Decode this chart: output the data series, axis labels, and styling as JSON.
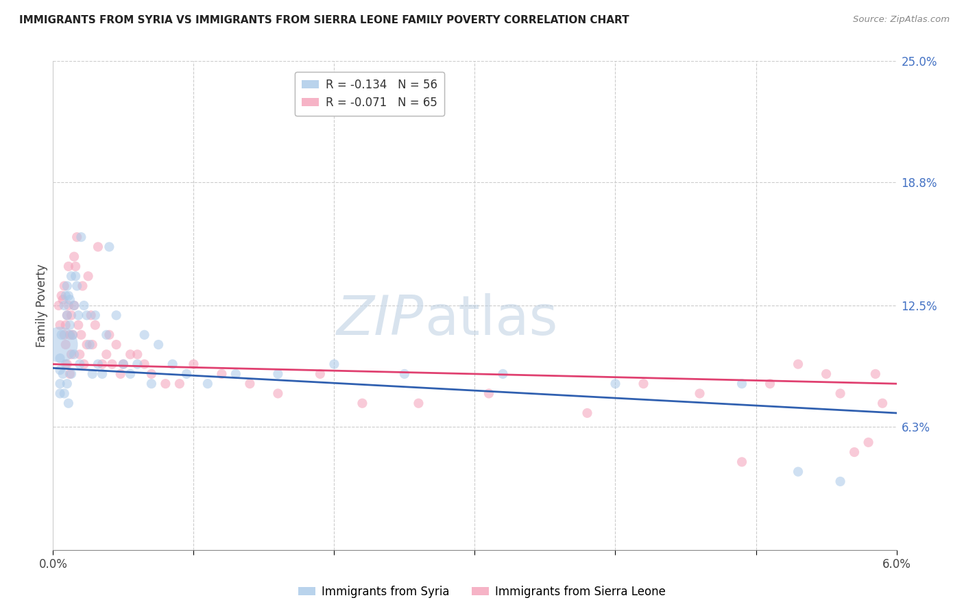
{
  "title": "IMMIGRANTS FROM SYRIA VS IMMIGRANTS FROM SIERRA LEONE FAMILY POVERTY CORRELATION CHART",
  "source": "Source: ZipAtlas.com",
  "ylabel": "Family Poverty",
  "ylabel_right_ticks": [
    6.3,
    12.5,
    18.8,
    25.0
  ],
  "xlim": [
    0.0,
    6.0
  ],
  "ylim": [
    0.0,
    25.0
  ],
  "syria_R": -0.134,
  "syria_N": 56,
  "sierraleone_R": -0.071,
  "sierraleone_N": 65,
  "syria_color": "#a8c8e8",
  "sierraleone_color": "#f4a0b8",
  "syria_line_color": "#3060b0",
  "sierraleone_line_color": "#e04070",
  "background_color": "#ffffff",
  "watermark_zip": "ZIP",
  "watermark_atlas": "atlas",
  "legend_label_syria": "Immigrants from Syria",
  "legend_label_sierraleone": "Immigrants from Sierra Leone",
  "syria_x": [
    0.05,
    0.05,
    0.05,
    0.05,
    0.05,
    0.06,
    0.07,
    0.08,
    0.08,
    0.09,
    0.09,
    0.1,
    0.1,
    0.1,
    0.11,
    0.11,
    0.12,
    0.12,
    0.13,
    0.13,
    0.14,
    0.15,
    0.15,
    0.16,
    0.17,
    0.18,
    0.19,
    0.2,
    0.22,
    0.24,
    0.26,
    0.28,
    0.3,
    0.32,
    0.35,
    0.38,
    0.4,
    0.45,
    0.5,
    0.55,
    0.6,
    0.65,
    0.7,
    0.75,
    0.85,
    0.95,
    1.1,
    1.3,
    1.6,
    2.0,
    2.5,
    3.2,
    4.0,
    4.9,
    5.3,
    5.6
  ],
  "syria_y": [
    10.5,
    9.8,
    9.2,
    8.5,
    8.0,
    11.0,
    9.0,
    12.5,
    8.0,
    13.0,
    9.5,
    13.5,
    12.0,
    8.5,
    13.0,
    7.5,
    12.8,
    11.5,
    14.0,
    9.0,
    11.0,
    12.5,
    10.0,
    14.0,
    13.5,
    12.0,
    9.5,
    16.0,
    12.5,
    12.0,
    10.5,
    9.0,
    12.0,
    9.5,
    9.0,
    11.0,
    15.5,
    12.0,
    9.5,
    9.0,
    9.5,
    11.0,
    8.5,
    10.5,
    9.5,
    9.0,
    8.5,
    9.0,
    9.0,
    9.5,
    9.0,
    9.0,
    8.5,
    8.5,
    4.0,
    3.5
  ],
  "syria_size": [
    400,
    30,
    30,
    30,
    30,
    30,
    30,
    30,
    30,
    30,
    30,
    30,
    30,
    30,
    30,
    30,
    30,
    30,
    30,
    30,
    30,
    30,
    30,
    30,
    30,
    30,
    30,
    30,
    30,
    30,
    30,
    30,
    30,
    30,
    30,
    30,
    30,
    30,
    30,
    30,
    30,
    30,
    30,
    30,
    30,
    30,
    30,
    30,
    30,
    30,
    30,
    30,
    30,
    30,
    30,
    30
  ],
  "sierraleone_x": [
    0.04,
    0.05,
    0.06,
    0.07,
    0.08,
    0.08,
    0.09,
    0.09,
    0.1,
    0.1,
    0.11,
    0.11,
    0.12,
    0.12,
    0.13,
    0.13,
    0.14,
    0.15,
    0.15,
    0.16,
    0.17,
    0.18,
    0.19,
    0.2,
    0.21,
    0.22,
    0.24,
    0.25,
    0.27,
    0.28,
    0.3,
    0.32,
    0.35,
    0.38,
    0.4,
    0.42,
    0.45,
    0.48,
    0.5,
    0.55,
    0.6,
    0.65,
    0.7,
    0.8,
    0.9,
    1.0,
    1.2,
    1.4,
    1.6,
    1.9,
    2.2,
    2.6,
    3.1,
    3.8,
    4.2,
    4.6,
    4.9,
    5.1,
    5.3,
    5.5,
    5.6,
    5.7,
    5.8,
    5.85,
    5.9
  ],
  "sierraleone_y": [
    12.5,
    11.5,
    13.0,
    12.8,
    11.0,
    13.5,
    10.5,
    11.5,
    12.0,
    9.5,
    12.5,
    14.5,
    11.0,
    9.0,
    10.0,
    12.0,
    11.0,
    15.0,
    12.5,
    14.5,
    16.0,
    11.5,
    10.0,
    11.0,
    13.5,
    9.5,
    10.5,
    14.0,
    12.0,
    10.5,
    11.5,
    15.5,
    9.5,
    10.0,
    11.0,
    9.5,
    10.5,
    9.0,
    9.5,
    10.0,
    10.0,
    9.5,
    9.0,
    8.5,
    8.5,
    9.5,
    9.0,
    8.5,
    8.0,
    9.0,
    7.5,
    7.5,
    8.0,
    7.0,
    8.5,
    8.0,
    4.5,
    8.5,
    9.5,
    9.0,
    8.0,
    5.0,
    5.5,
    9.0,
    7.5
  ],
  "sierraleone_size": [
    30,
    30,
    30,
    30,
    30,
    30,
    30,
    30,
    30,
    30,
    30,
    30,
    30,
    30,
    30,
    30,
    30,
    30,
    30,
    30,
    30,
    30,
    30,
    30,
    30,
    30,
    30,
    30,
    30,
    30,
    30,
    30,
    30,
    30,
    30,
    30,
    30,
    30,
    30,
    30,
    30,
    30,
    30,
    30,
    30,
    30,
    30,
    30,
    30,
    30,
    30,
    30,
    30,
    30,
    30,
    30,
    30,
    30,
    30,
    30,
    30,
    30,
    30,
    30,
    30
  ],
  "syria_line_x0": 0.0,
  "syria_line_y0": 9.3,
  "syria_line_x1": 6.0,
  "syria_line_y1": 7.0,
  "sierra_line_x0": 0.0,
  "sierra_line_y0": 9.5,
  "sierra_line_x1": 6.0,
  "sierra_line_y1": 8.5
}
